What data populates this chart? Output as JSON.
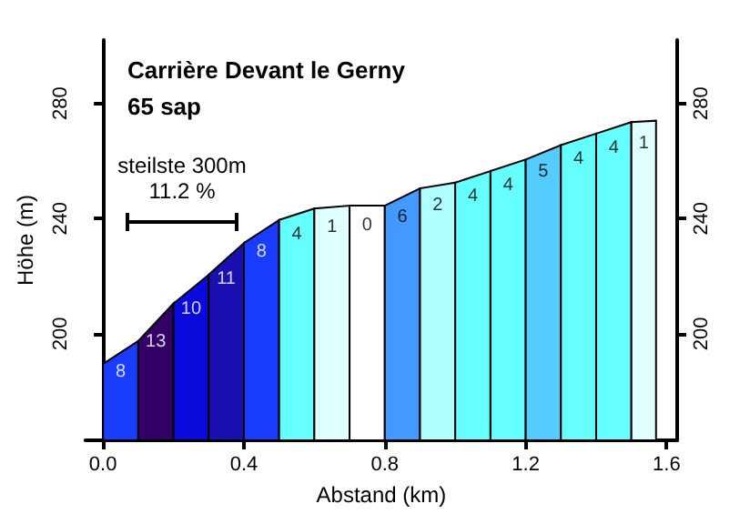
{
  "chart_data": {
    "type": "area",
    "title": "Carrière Devant le Gerny",
    "subtitle": "65 sap",
    "xlabel": "Abstand (km)",
    "ylabel": "Höhe (m)",
    "annotations": [
      "steilste 300m",
      "11.2 %",
      {
        "text": "8",
        "x": 0.05,
        "y": 193.5
      },
      {
        "text": "13",
        "x": 0.15,
        "y": 204
      },
      {
        "text": "10",
        "x": 0.25,
        "y": 215.5
      },
      {
        "text": "11",
        "x": 0.35,
        "y": 226
      },
      {
        "text": "8",
        "x": 0.45,
        "y": 235.5
      },
      {
        "text": "4",
        "x": 0.55,
        "y": 241.5
      },
      {
        "text": "1",
        "x": 0.65,
        "y": 244
      },
      {
        "text": "0",
        "x": 0.75,
        "y": 244.5
      },
      {
        "text": "6",
        "x": 0.85,
        "y": 247.5
      },
      {
        "text": "2",
        "x": 0.95,
        "y": 251.5
      },
      {
        "text": "4",
        "x": 1.05,
        "y": 254.5
      },
      {
        "text": "4",
        "x": 1.15,
        "y": 258.5
      },
      {
        "text": "5",
        "x": 1.25,
        "y": 263
      },
      {
        "text": "4",
        "x": 1.35,
        "y": 267.5
      },
      {
        "text": "4",
        "x": 1.45,
        "y": 271.5
      },
      {
        "text": "1",
        "x": 1.535,
        "y": 273
      }
    ],
    "series": [
      {
        "color": "#1a3cff",
        "x": [
          0,
          0.1
        ],
        "values": [
          189.5,
          197.5
        ]
      },
      {
        "color": "#330066",
        "x": [
          0.1,
          0.2
        ],
        "values": [
          197.5,
          210.5
        ]
      },
      {
        "color": "#0a0adc",
        "x": [
          0.2,
          0.3
        ],
        "values": [
          210.5,
          220.5
        ]
      },
      {
        "color": "#1a0fb0",
        "x": [
          0.3,
          0.4
        ],
        "values": [
          220.5,
          231.5
        ]
      },
      {
        "color": "#1a3cff",
        "x": [
          0.4,
          0.5
        ],
        "values": [
          231.5,
          239.5
        ]
      },
      {
        "color": "#66ffff",
        "x": [
          0.5,
          0.6
        ],
        "values": [
          239.5,
          243.5
        ]
      },
      {
        "color": "#e0ffff",
        "x": [
          0.6,
          0.7
        ],
        "values": [
          243.5,
          244.5
        ]
      },
      {
        "color": "#ffffff",
        "x": [
          0.7,
          0.8
        ],
        "values": [
          244.5,
          244.5
        ]
      },
      {
        "color": "#4499ff",
        "x": [
          0.8,
          0.9
        ],
        "values": [
          244.5,
          250.5
        ]
      },
      {
        "color": "#b0ffff",
        "x": [
          0.9,
          1.0
        ],
        "values": [
          250.5,
          252.5
        ]
      },
      {
        "color": "#66ffff",
        "x": [
          1.0,
          1.1
        ],
        "values": [
          252.5,
          256.5
        ]
      },
      {
        "color": "#66ffff",
        "x": [
          1.1,
          1.2
        ],
        "values": [
          256.5,
          260.5
        ]
      },
      {
        "color": "#55ccff",
        "x": [
          1.2,
          1.3
        ],
        "values": [
          260.5,
          265.5
        ]
      },
      {
        "color": "#66ffff",
        "x": [
          1.3,
          1.4
        ],
        "values": [
          265.5,
          269.5
        ]
      },
      {
        "color": "#66ffff",
        "x": [
          1.4,
          1.5
        ],
        "values": [
          269.5,
          273.5
        ]
      },
      {
        "color": "#e0ffff",
        "x": [
          1.5,
          1.57
        ],
        "values": [
          273.5,
          274
        ]
      }
    ],
    "xlim": [
      -0.05,
      1.63
    ],
    "xticks": [
      {
        "value": 0,
        "label": "0.0"
      },
      {
        "value": 0.4,
        "label": "0.4"
      },
      {
        "value": 0.8,
        "label": "0.8"
      },
      {
        "value": 1.2,
        "label": "1.2"
      },
      {
        "value": 1.6,
        "label": "1.6"
      }
    ],
    "ylim": [
      163,
      302
    ],
    "yticks": [
      200,
      240,
      280
    ],
    "y2lim": [
      163,
      302
    ],
    "y2ticks": [
      200,
      240,
      280
    ],
    "grid": false
  }
}
